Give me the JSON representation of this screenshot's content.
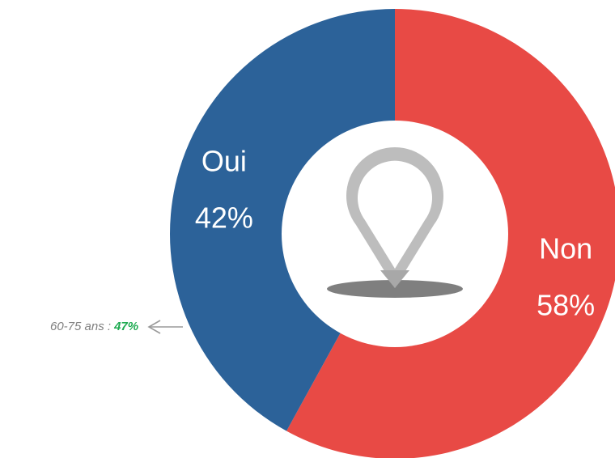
{
  "chart_data": {
    "type": "donut",
    "categories": [
      "Non",
      "Oui"
    ],
    "values": [
      58,
      42
    ],
    "value_labels": [
      "58%",
      "42%"
    ],
    "colors": [
      "#e84a45",
      "#2c6299"
    ],
    "annotation": {
      "text": "60-75 ans :",
      "highlight": "47%"
    }
  }
}
